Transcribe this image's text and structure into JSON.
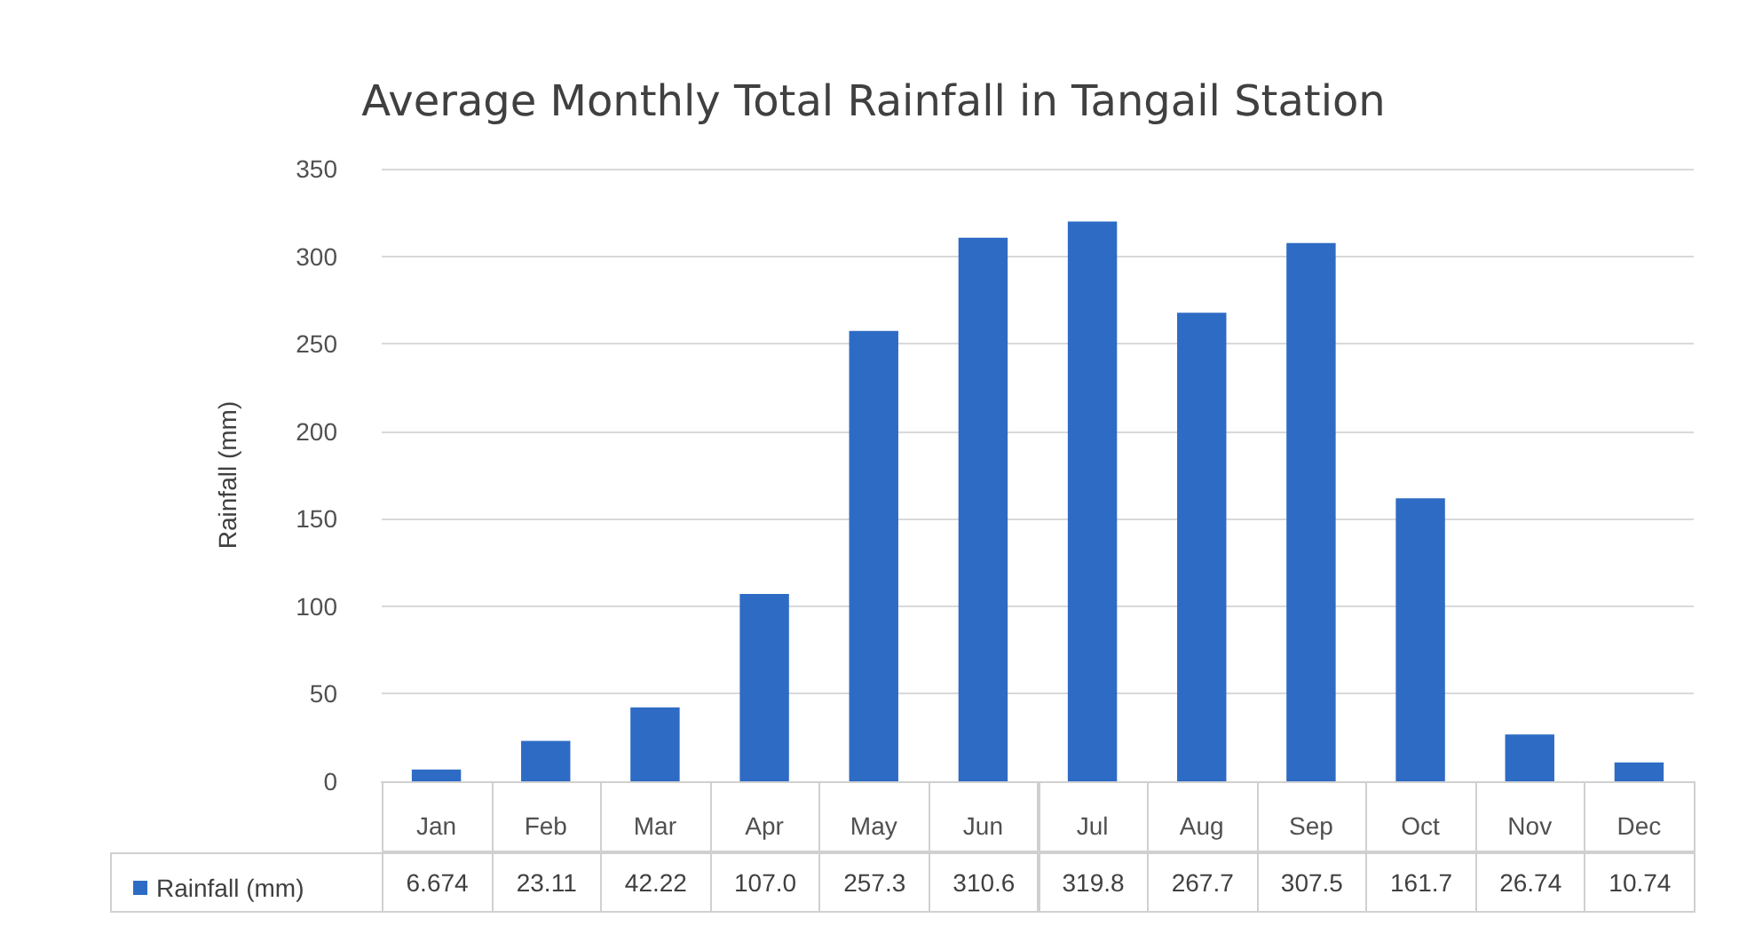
{
  "chart_data": {
    "type": "bar",
    "title": "Average Monthly Total Rainfall in Tangail Station",
    "ylabel": "Rainfall (mm)",
    "categories": [
      "Jan",
      "Feb",
      "Mar",
      "Apr",
      "May",
      "Jun",
      "Jul",
      "Aug",
      "Sep",
      "Oct",
      "Nov",
      "Dec"
    ],
    "series": [
      {
        "name": "Rainfall (mm)",
        "color": "#2e6bc4",
        "values": [
          6.674,
          23.11,
          42.22,
          107.0,
          257.3,
          310.6,
          319.8,
          267.7,
          307.5,
          161.7,
          26.74,
          10.74
        ],
        "value_labels": [
          "6.674",
          "23.11",
          "42.22",
          "107.0",
          "257.3",
          "310.6",
          "319.8",
          "267.7",
          "307.5",
          "161.7",
          "26.74",
          "10.74"
        ]
      }
    ],
    "ylim": [
      0,
      350
    ],
    "yticks": [
      0,
      50,
      100,
      150,
      200,
      250,
      300,
      350
    ],
    "grid": "y",
    "legend": "bottom left"
  }
}
